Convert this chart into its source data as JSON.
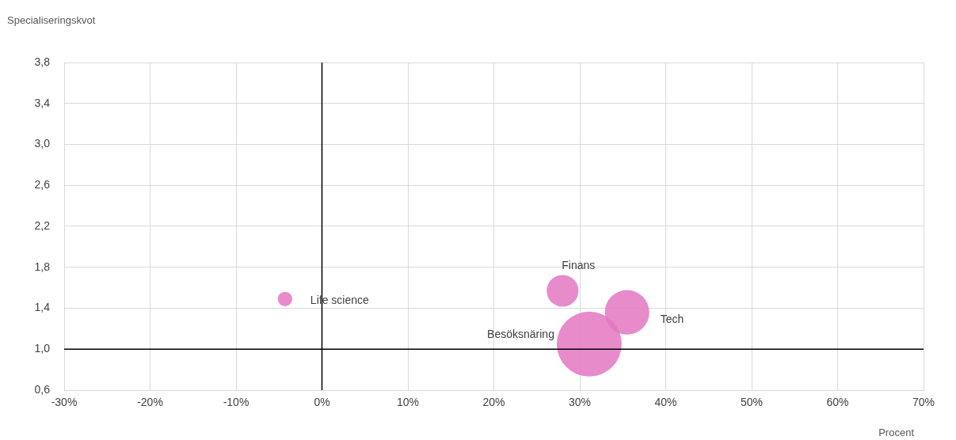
{
  "chart_data": {
    "type": "bubble",
    "ylabel": "Specialiseringskvot",
    "xlabel": "Procent",
    "xlim": [
      -30,
      70
    ],
    "xticks": [
      {
        "value": -30,
        "label": "-30%"
      },
      {
        "value": -20,
        "label": "-20%"
      },
      {
        "value": -10,
        "label": "-10%"
      },
      {
        "value": 0,
        "label": "0%"
      },
      {
        "value": 10,
        "label": "10%"
      },
      {
        "value": 20,
        "label": "20%"
      },
      {
        "value": 30,
        "label": "30%"
      },
      {
        "value": 40,
        "label": "40%"
      },
      {
        "value": 50,
        "label": "50%"
      },
      {
        "value": 60,
        "label": "60%"
      },
      {
        "value": 70,
        "label": "70%"
      }
    ],
    "ylim": [
      0.6,
      3.8
    ],
    "yticks": [
      {
        "value": 0.6,
        "label": "0,6"
      },
      {
        "value": 1.0,
        "label": "1,0"
      },
      {
        "value": 1.4,
        "label": "1,4"
      },
      {
        "value": 1.8,
        "label": "1,8"
      },
      {
        "value": 2.2,
        "label": "2,2"
      },
      {
        "value": 2.6,
        "label": "2,6"
      },
      {
        "value": 3.0,
        "label": "3,0"
      },
      {
        "value": 3.4,
        "label": "3,4"
      },
      {
        "value": 3.8,
        "label": "3,8"
      }
    ],
    "grid": true,
    "legend": false,
    "ref_lines": [
      {
        "axis": "x",
        "value": 0,
        "color": "#000000"
      },
      {
        "axis": "y",
        "value": 1.0,
        "color": "#000000"
      }
    ],
    "series": [
      {
        "name": "Life science",
        "color": "#e377c2",
        "x": [
          -4.3
        ],
        "values": [
          1.49
        ],
        "sizes": [
          0.05
        ]
      },
      {
        "name": "Finans",
        "color": "#e377c2",
        "x": [
          28.0
        ],
        "values": [
          1.57
        ],
        "sizes": [
          0.24
        ]
      },
      {
        "name": "Tech",
        "color": "#e377c2",
        "x": [
          35.5
        ],
        "values": [
          1.36
        ],
        "sizes": [
          0.47
        ]
      },
      {
        "name": "Besöksnäring",
        "color": "#e377c2",
        "x": [
          31.1
        ],
        "values": [
          1.05
        ],
        "sizes": [
          1
        ]
      }
    ]
  }
}
